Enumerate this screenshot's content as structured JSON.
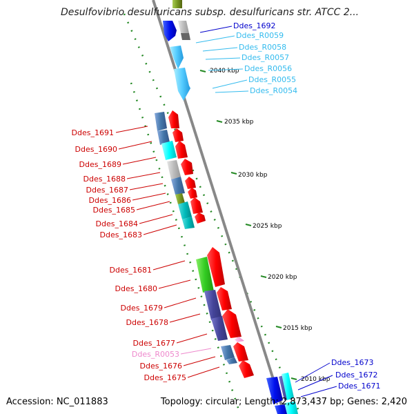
{
  "header": {
    "title": "Desulfovibrio desulfuricans subsp. desulfuricans str. ATCC 2..."
  },
  "footer": {
    "accession": "Accession: NC_011883",
    "summary": "Topology: circular; Length: 2,873,437 bp; Genes: 2,420"
  },
  "colors": {
    "label_red": "#cc0000",
    "label_blue": "#0000cc",
    "label_cyan": "#33bbee",
    "label_pink": "#ee88cc",
    "backbone": "#888888",
    "tick_green": "#228822"
  },
  "ticks": [
    {
      "label": "2040 kbp"
    },
    {
      "label": "2035 kbp"
    },
    {
      "label": "2030 kbp"
    },
    {
      "label": "2025 kbp"
    },
    {
      "label": "2020 kbp"
    },
    {
      "label": "2015 kbp"
    },
    {
      "label": "2010 kbp"
    }
  ],
  "labels_right": [
    {
      "text": "Ddes_1692",
      "color": "blue"
    },
    {
      "text": "Ddes_R0059",
      "color": "cyan"
    },
    {
      "text": "Ddes_R0058",
      "color": "cyan"
    },
    {
      "text": "Ddes_R0057",
      "color": "cyan"
    },
    {
      "text": "Ddes_R0056",
      "color": "cyan"
    },
    {
      "text": "Ddes_R0055",
      "color": "cyan"
    },
    {
      "text": "Ddes_R0054",
      "color": "cyan"
    },
    {
      "text": "Ddes_1673",
      "color": "blue"
    },
    {
      "text": "Ddes_1672",
      "color": "blue"
    },
    {
      "text": "Ddes_1671",
      "color": "blue"
    }
  ],
  "labels_left": [
    {
      "text": "Ddes_1691",
      "color": "red"
    },
    {
      "text": "Ddes_1690",
      "color": "red"
    },
    {
      "text": "Ddes_1689",
      "color": "red"
    },
    {
      "text": "Ddes_1688",
      "color": "red"
    },
    {
      "text": "Ddes_1687",
      "color": "red"
    },
    {
      "text": "Ddes_1686",
      "color": "red"
    },
    {
      "text": "Ddes_1685",
      "color": "red"
    },
    {
      "text": "Ddes_1684",
      "color": "red"
    },
    {
      "text": "Ddes_1683",
      "color": "red"
    },
    {
      "text": "Ddes_1681",
      "color": "red"
    },
    {
      "text": "Ddes_1680",
      "color": "red"
    },
    {
      "text": "Ddes_1679",
      "color": "red"
    },
    {
      "text": "Ddes_1678",
      "color": "red"
    },
    {
      "text": "Ddes_1677",
      "color": "red"
    },
    {
      "text": "Ddes_R0053",
      "color": "pink"
    },
    {
      "text": "Ddes_1676",
      "color": "red"
    },
    {
      "text": "Ddes_1675",
      "color": "red"
    }
  ]
}
